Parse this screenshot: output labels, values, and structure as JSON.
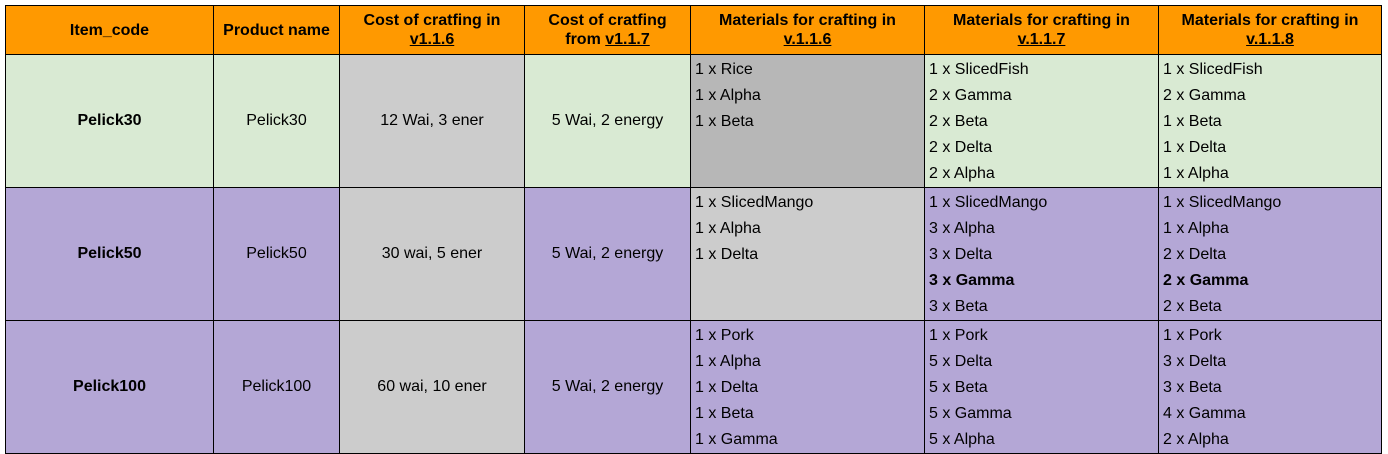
{
  "headers": {
    "item_code": "Item_code",
    "product_name": "Product name",
    "cost_old_line1": "Cost of cratfing in",
    "cost_old_version": "v1.1.6",
    "cost_new_line1": "Cost of cratfing",
    "cost_new_prefix": "from ",
    "cost_new_version": "v1.1.7",
    "mat_line1": "Materials for crafting in",
    "mat_v116": "v.1.1.6",
    "mat_v117": "v.1.1.7",
    "mat_v118": "v.1.1.8"
  },
  "colors": {
    "header": "#ff9900",
    "row_green": "#d9ead3",
    "row_purple": "#b4a7d6",
    "cost_old_gray": "#cccccc",
    "mat_dark_gray": "#b7b7b7",
    "mat_light_gray": "#cccccc"
  },
  "rows": [
    {
      "item_code": "Pelick30",
      "product_name": "Pelick30",
      "cost_old": "12 Wai, 3 ener",
      "cost_new": "5 Wai, 2 energy",
      "mat_v116": [
        "1 x Rice",
        "1 x Alpha",
        "1 x Beta"
      ],
      "mat_v117": [
        "1 x SlicedFish",
        "2 x Gamma",
        "2 x Beta",
        "2 x Delta",
        "2 x Alpha"
      ],
      "mat_v118": [
        "1 x SlicedFish",
        "2 x Gamma",
        "1 x Beta",
        "1 x Delta",
        "1 x Alpha"
      ]
    },
    {
      "item_code": "Pelick50",
      "product_name": "Pelick50",
      "cost_old": "30 wai, 5 ener",
      "cost_new": "5 Wai, 2 energy",
      "mat_v116": [
        "1 x SlicedMango",
        "1 x Alpha",
        "1 x Delta"
      ],
      "mat_v117": [
        "1 x SlicedMango",
        "3 x Alpha",
        "3 x Delta",
        "3 x Gamma",
        "3 x Beta"
      ],
      "mat_v118": [
        "1 x SlicedMango",
        "1 x Alpha",
        "2 x Delta",
        "2 x Gamma",
        "2 x Beta"
      ]
    },
    {
      "item_code": "Pelick100",
      "product_name": "Pelick100",
      "cost_old": "60 wai, 10 ener",
      "cost_new": "5 Wai, 2 energy",
      "mat_v116": [
        "1 x Pork",
        "1 x Alpha",
        "1 x Delta",
        "1 x Beta",
        "1 x Gamma"
      ],
      "mat_v117": [
        "1 x Pork",
        "5 x Delta",
        "5 x Beta",
        "5 x Gamma",
        "5 x Alpha"
      ],
      "mat_v118": [
        "1 x Pork",
        "3 x Delta",
        "3 x Beta",
        "4 x Gamma",
        "2 x Alpha"
      ]
    }
  ]
}
